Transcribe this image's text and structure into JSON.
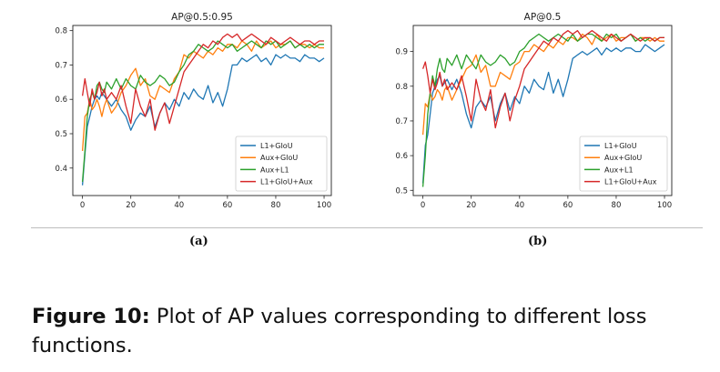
{
  "chart_data": [
    {
      "type": "line",
      "title": "AP@0.5:0.95",
      "xlabel": "",
      "ylabel": "",
      "xlim": [
        -4,
        103
      ],
      "ylim": [
        0.32,
        0.815
      ],
      "xticks": [
        0,
        20,
        40,
        60,
        80,
        100
      ],
      "xtick_labels": [
        "0",
        "20",
        "40",
        "60",
        "80",
        "100"
      ],
      "yticks": [
        0.4,
        0.5,
        0.6,
        0.7,
        0.8
      ],
      "ytick_labels": [
        "0.4",
        "0.5",
        "0.6",
        "0.7",
        "0.8"
      ],
      "legend_position": "lower-right",
      "series": [
        {
          "name": "L1+GIoU",
          "color": "#1f77b4",
          "x": [
            0,
            1,
            2,
            3,
            4,
            5,
            6,
            7,
            8,
            9,
            10,
            12,
            14,
            16,
            18,
            20,
            22,
            24,
            26,
            28,
            30,
            32,
            34,
            36,
            38,
            40,
            42,
            44,
            46,
            48,
            50,
            52,
            54,
            56,
            58,
            60,
            62,
            64,
            66,
            68,
            70,
            72,
            74,
            76,
            78,
            80,
            82,
            84,
            86,
            88,
            90,
            92,
            94,
            96,
            98,
            100
          ],
          "y": [
            0.35,
            0.44,
            0.52,
            0.55,
            0.58,
            0.6,
            0.61,
            0.6,
            0.62,
            0.61,
            0.6,
            0.58,
            0.6,
            0.57,
            0.55,
            0.51,
            0.54,
            0.56,
            0.55,
            0.58,
            0.52,
            0.56,
            0.59,
            0.57,
            0.6,
            0.58,
            0.62,
            0.6,
            0.63,
            0.61,
            0.6,
            0.64,
            0.59,
            0.62,
            0.58,
            0.63,
            0.7,
            0.7,
            0.72,
            0.71,
            0.72,
            0.73,
            0.71,
            0.72,
            0.7,
            0.73,
            0.72,
            0.73,
            0.72,
            0.72,
            0.71,
            0.73,
            0.72,
            0.72,
            0.71,
            0.72
          ]
        },
        {
          "name": "Aux+GIoU",
          "color": "#ff7f0e",
          "x": [
            0,
            1,
            2,
            3,
            4,
            5,
            6,
            7,
            8,
            9,
            10,
            12,
            14,
            16,
            18,
            20,
            22,
            24,
            26,
            28,
            30,
            32,
            34,
            36,
            38,
            40,
            42,
            44,
            46,
            48,
            50,
            52,
            54,
            56,
            58,
            60,
            62,
            64,
            66,
            68,
            70,
            72,
            74,
            76,
            78,
            80,
            82,
            84,
            86,
            88,
            90,
            92,
            94,
            96,
            98,
            100
          ],
          "y": [
            0.45,
            0.55,
            0.56,
            0.6,
            0.57,
            0.58,
            0.6,
            0.58,
            0.55,
            0.58,
            0.6,
            0.56,
            0.58,
            0.62,
            0.64,
            0.67,
            0.69,
            0.64,
            0.66,
            0.61,
            0.6,
            0.64,
            0.63,
            0.62,
            0.66,
            0.68,
            0.73,
            0.72,
            0.74,
            0.73,
            0.72,
            0.74,
            0.73,
            0.75,
            0.74,
            0.76,
            0.76,
            0.75,
            0.77,
            0.76,
            0.74,
            0.77,
            0.75,
            0.76,
            0.77,
            0.75,
            0.76,
            0.76,
            0.77,
            0.75,
            0.76,
            0.76,
            0.75,
            0.76,
            0.75,
            0.75
          ]
        },
        {
          "name": "Aux+L1",
          "color": "#2ca02c",
          "x": [
            0,
            1,
            2,
            3,
            4,
            5,
            6,
            7,
            8,
            9,
            10,
            12,
            14,
            16,
            18,
            20,
            22,
            24,
            26,
            28,
            30,
            32,
            34,
            36,
            38,
            40,
            42,
            44,
            46,
            48,
            50,
            52,
            54,
            56,
            58,
            60,
            62,
            64,
            66,
            68,
            70,
            72,
            74,
            76,
            78,
            80,
            82,
            84,
            86,
            88,
            90,
            92,
            94,
            96,
            98,
            100
          ],
          "y": [
            0.36,
            0.45,
            0.55,
            0.6,
            0.62,
            0.6,
            0.64,
            0.65,
            0.63,
            0.62,
            0.65,
            0.63,
            0.66,
            0.63,
            0.66,
            0.64,
            0.63,
            0.67,
            0.65,
            0.64,
            0.65,
            0.67,
            0.66,
            0.64,
            0.65,
            0.68,
            0.7,
            0.73,
            0.74,
            0.76,
            0.75,
            0.74,
            0.75,
            0.77,
            0.76,
            0.75,
            0.76,
            0.74,
            0.75,
            0.76,
            0.77,
            0.76,
            0.75,
            0.77,
            0.76,
            0.77,
            0.75,
            0.76,
            0.77,
            0.75,
            0.76,
            0.75,
            0.76,
            0.75,
            0.76,
            0.76
          ]
        },
        {
          "name": "L1+GIoU+Aux",
          "color": "#d62728",
          "x": [
            0,
            1,
            2,
            3,
            4,
            5,
            6,
            7,
            8,
            9,
            10,
            12,
            14,
            16,
            18,
            20,
            22,
            24,
            26,
            28,
            30,
            32,
            34,
            36,
            38,
            40,
            42,
            44,
            46,
            48,
            50,
            52,
            54,
            56,
            58,
            60,
            62,
            64,
            66,
            68,
            70,
            72,
            74,
            76,
            78,
            80,
            82,
            84,
            86,
            88,
            90,
            92,
            94,
            96,
            98,
            100
          ],
          "y": [
            0.61,
            0.66,
            0.62,
            0.58,
            0.63,
            0.6,
            0.62,
            0.65,
            0.61,
            0.63,
            0.6,
            0.62,
            0.6,
            0.64,
            0.58,
            0.53,
            0.63,
            0.58,
            0.55,
            0.6,
            0.51,
            0.56,
            0.59,
            0.53,
            0.58,
            0.63,
            0.68,
            0.7,
            0.72,
            0.74,
            0.76,
            0.75,
            0.77,
            0.76,
            0.78,
            0.79,
            0.78,
            0.79,
            0.77,
            0.78,
            0.79,
            0.78,
            0.77,
            0.76,
            0.78,
            0.77,
            0.76,
            0.77,
            0.78,
            0.77,
            0.76,
            0.77,
            0.77,
            0.76,
            0.77,
            0.77
          ]
        }
      ]
    },
    {
      "type": "line",
      "title": "AP@0.5",
      "xlabel": "",
      "ylabel": "",
      "xlim": [
        -4,
        103
      ],
      "ylim": [
        0.485,
        0.975
      ],
      "xticks": [
        0,
        20,
        40,
        60,
        80,
        100
      ],
      "xtick_labels": [
        "0",
        "20",
        "40",
        "60",
        "80",
        "100"
      ],
      "yticks": [
        0.5,
        0.6,
        0.7,
        0.8,
        0.9
      ],
      "ytick_labels": [
        "0.5",
        "0.6",
        "0.7",
        "0.8",
        "0.9"
      ],
      "legend_position": "lower-right",
      "series": [
        {
          "name": "L1+GIoU",
          "color": "#1f77b4",
          "x": [
            0,
            1,
            2,
            3,
            4,
            5,
            6,
            7,
            8,
            9,
            10,
            12,
            14,
            16,
            18,
            20,
            22,
            24,
            26,
            28,
            30,
            32,
            34,
            36,
            38,
            40,
            42,
            44,
            46,
            48,
            50,
            52,
            54,
            56,
            58,
            60,
            62,
            64,
            66,
            68,
            70,
            72,
            74,
            76,
            78,
            80,
            82,
            84,
            86,
            88,
            90,
            92,
            94,
            96,
            98,
            100
          ],
          "y": [
            0.52,
            0.63,
            0.66,
            0.72,
            0.78,
            0.8,
            0.82,
            0.83,
            0.8,
            0.81,
            0.82,
            0.79,
            0.82,
            0.78,
            0.72,
            0.68,
            0.74,
            0.76,
            0.74,
            0.77,
            0.7,
            0.75,
            0.78,
            0.73,
            0.77,
            0.75,
            0.8,
            0.78,
            0.82,
            0.8,
            0.79,
            0.84,
            0.78,
            0.82,
            0.77,
            0.82,
            0.88,
            0.89,
            0.9,
            0.89,
            0.9,
            0.91,
            0.89,
            0.91,
            0.9,
            0.91,
            0.9,
            0.91,
            0.91,
            0.9,
            0.9,
            0.92,
            0.91,
            0.9,
            0.91,
            0.92
          ]
        },
        {
          "name": "Aux+GIoU",
          "color": "#ff7f0e",
          "x": [
            0,
            1,
            2,
            3,
            4,
            5,
            6,
            7,
            8,
            9,
            10,
            12,
            14,
            16,
            18,
            20,
            22,
            24,
            26,
            28,
            30,
            32,
            34,
            36,
            38,
            40,
            42,
            44,
            46,
            48,
            50,
            52,
            54,
            56,
            58,
            60,
            62,
            64,
            66,
            68,
            70,
            72,
            74,
            76,
            78,
            80,
            82,
            84,
            86,
            88,
            90,
            92,
            94,
            96,
            98,
            100
          ],
          "y": [
            0.66,
            0.75,
            0.74,
            0.78,
            0.76,
            0.77,
            0.79,
            0.78,
            0.76,
            0.79,
            0.8,
            0.76,
            0.79,
            0.82,
            0.85,
            0.86,
            0.89,
            0.84,
            0.86,
            0.8,
            0.8,
            0.84,
            0.83,
            0.82,
            0.86,
            0.87,
            0.9,
            0.9,
            0.92,
            0.91,
            0.9,
            0.92,
            0.91,
            0.93,
            0.92,
            0.94,
            0.94,
            0.93,
            0.95,
            0.94,
            0.92,
            0.95,
            0.93,
            0.94,
            0.95,
            0.93,
            0.94,
            0.94,
            0.95,
            0.93,
            0.94,
            0.94,
            0.93,
            0.94,
            0.93,
            0.93
          ]
        },
        {
          "name": "Aux+L1",
          "color": "#2ca02c",
          "x": [
            0,
            1,
            2,
            3,
            4,
            5,
            6,
            7,
            8,
            9,
            10,
            12,
            14,
            16,
            18,
            20,
            22,
            24,
            26,
            28,
            30,
            32,
            34,
            36,
            38,
            40,
            42,
            44,
            46,
            48,
            50,
            52,
            54,
            56,
            58,
            60,
            62,
            64,
            66,
            68,
            70,
            72,
            74,
            76,
            78,
            80,
            82,
            84,
            86,
            88,
            90,
            92,
            94,
            96,
            98,
            100
          ],
          "y": [
            0.51,
            0.6,
            0.72,
            0.78,
            0.83,
            0.8,
            0.85,
            0.88,
            0.85,
            0.84,
            0.88,
            0.86,
            0.89,
            0.85,
            0.89,
            0.87,
            0.85,
            0.89,
            0.87,
            0.86,
            0.87,
            0.89,
            0.88,
            0.86,
            0.87,
            0.9,
            0.91,
            0.93,
            0.94,
            0.95,
            0.94,
            0.93,
            0.94,
            0.95,
            0.94,
            0.93,
            0.95,
            0.93,
            0.94,
            0.95,
            0.95,
            0.94,
            0.93,
            0.95,
            0.94,
            0.95,
            0.93,
            0.94,
            0.95,
            0.93,
            0.94,
            0.93,
            0.94,
            0.93,
            0.94,
            0.94
          ]
        },
        {
          "name": "L1+GIoU+Aux",
          "color": "#d62728",
          "x": [
            0,
            1,
            2,
            3,
            4,
            5,
            6,
            7,
            8,
            9,
            10,
            12,
            14,
            16,
            18,
            20,
            22,
            24,
            26,
            28,
            30,
            32,
            34,
            36,
            38,
            40,
            42,
            44,
            46,
            48,
            50,
            52,
            54,
            56,
            58,
            60,
            62,
            64,
            66,
            68,
            70,
            72,
            74,
            76,
            78,
            80,
            82,
            84,
            86,
            88,
            90,
            92,
            94,
            96,
            98,
            100
          ],
          "y": [
            0.85,
            0.87,
            0.83,
            0.78,
            0.82,
            0.79,
            0.81,
            0.84,
            0.8,
            0.82,
            0.79,
            0.81,
            0.79,
            0.83,
            0.77,
            0.7,
            0.82,
            0.76,
            0.73,
            0.79,
            0.68,
            0.74,
            0.78,
            0.7,
            0.76,
            0.8,
            0.85,
            0.87,
            0.89,
            0.91,
            0.93,
            0.92,
            0.94,
            0.93,
            0.95,
            0.96,
            0.95,
            0.96,
            0.94,
            0.95,
            0.96,
            0.95,
            0.94,
            0.93,
            0.95,
            0.94,
            0.93,
            0.94,
            0.95,
            0.94,
            0.93,
            0.94,
            0.94,
            0.93,
            0.94,
            0.94
          ]
        }
      ]
    }
  ],
  "subfigures": {
    "a_label": "(a)",
    "b_label": "(b)"
  },
  "caption": {
    "label": "Figure 10:",
    "text": " Plot of AP values corresponding to different loss functions."
  }
}
